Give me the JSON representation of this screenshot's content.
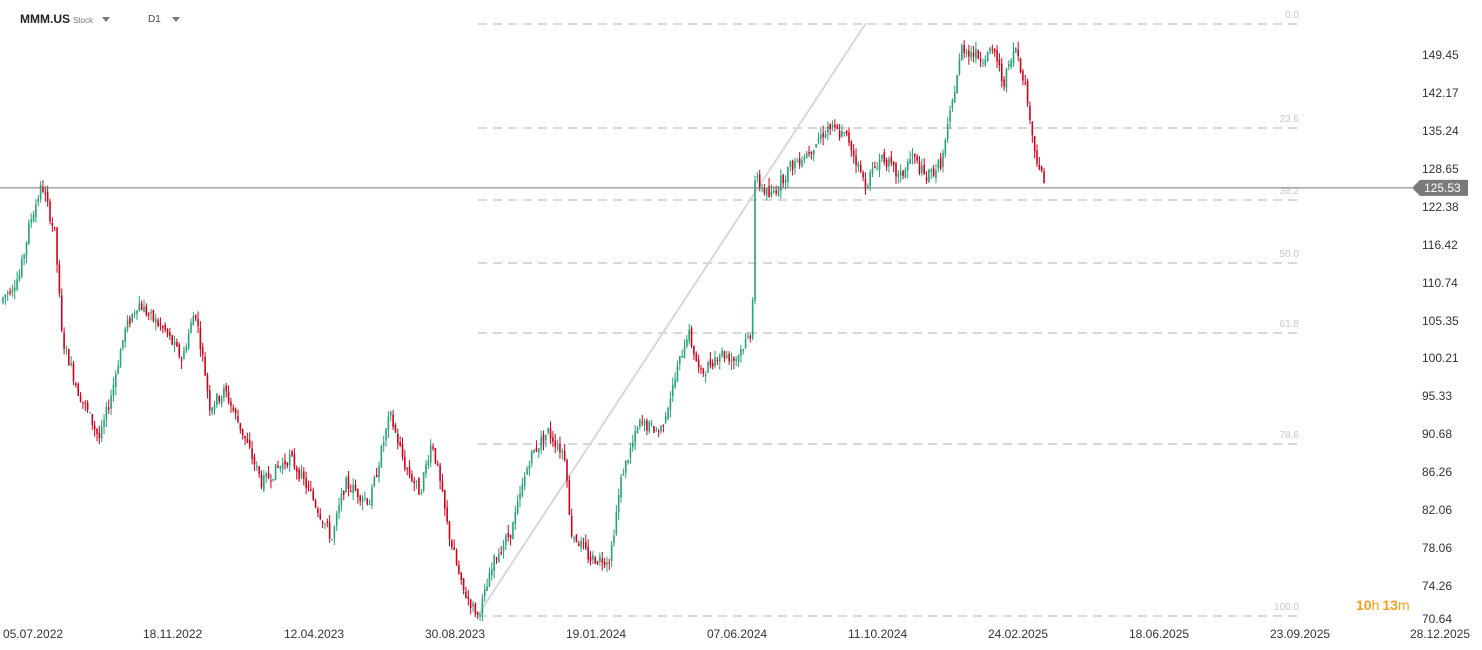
{
  "toolbar": {
    "symbol": "MMM.US",
    "instrument_type": "Stock",
    "timeframe": "D1",
    "symbol_dropdown_icon": "caret-down-icon",
    "timeframe_dropdown_icon": "caret-down-icon"
  },
  "countdown": {
    "hours": "10",
    "hours_unit": "h",
    "minutes": "13",
    "minutes_unit": "m"
  },
  "colors": {
    "up": "#26a17b",
    "down": "#d0021b",
    "fib": "#cccccc",
    "trend": "#d5d8db",
    "price_line": "#777777",
    "price_tag": "#7a7a7a",
    "countdown": "#f7a01d"
  },
  "chart_data": {
    "type": "candlestick",
    "ylim": [
      70.64,
      155.5
    ],
    "y_ticks": [
      "149.45",
      "142.17",
      "135.24",
      "128.65",
      "122.38",
      "116.42",
      "110.74",
      "105.35",
      "100.21",
      "95.33",
      "90.68",
      "86.26",
      "82.06",
      "78.06",
      "74.26",
      "70.64"
    ],
    "x_ticks": [
      "05.07.2022",
      "18.11.2022",
      "12.04.2023",
      "30.08.2023",
      "19.01.2024",
      "07.06.2024",
      "11.10.2024",
      "24.02.2025",
      "18.06.2025",
      "23.09.2025",
      "28.12.2025"
    ],
    "current_price": "125.53",
    "fibonacci": {
      "levels": [
        {
          "label": "0.0",
          "value": 155.2
        },
        {
          "label": "23.6",
          "value": 135.9
        },
        {
          "label": "38.2",
          "value": 123.3
        },
        {
          "label": "50.0",
          "value": 113.3
        },
        {
          "label": "61.8",
          "value": 104.0
        },
        {
          "label": "78.6",
          "value": 89.5
        },
        {
          "label": "100.0",
          "value": 71.0
        }
      ]
    },
    "trendline": {
      "from": {
        "date": "30.08.2023",
        "value": 71.0
      },
      "to": {
        "date": "11.10.2024",
        "value": 155.2
      }
    },
    "anchors": [
      {
        "x": 0,
        "y": 108
      },
      {
        "x": 20,
        "y": 112
      },
      {
        "x": 30,
        "y": 120
      },
      {
        "x": 42,
        "y": 126
      },
      {
        "x": 55,
        "y": 118
      },
      {
        "x": 62,
        "y": 103
      },
      {
        "x": 78,
        "y": 96
      },
      {
        "x": 100,
        "y": 90
      },
      {
        "x": 112,
        "y": 96
      },
      {
        "x": 125,
        "y": 104
      },
      {
        "x": 138,
        "y": 108
      },
      {
        "x": 150,
        "y": 106
      },
      {
        "x": 165,
        "y": 104
      },
      {
        "x": 182,
        "y": 100
      },
      {
        "x": 195,
        "y": 107
      },
      {
        "x": 210,
        "y": 94
      },
      {
        "x": 225,
        "y": 96
      },
      {
        "x": 242,
        "y": 91
      },
      {
        "x": 262,
        "y": 85
      },
      {
        "x": 290,
        "y": 88
      },
      {
        "x": 310,
        "y": 84
      },
      {
        "x": 332,
        "y": 79
      },
      {
        "x": 345,
        "y": 85
      },
      {
        "x": 370,
        "y": 83
      },
      {
        "x": 390,
        "y": 93
      },
      {
        "x": 405,
        "y": 87
      },
      {
        "x": 420,
        "y": 84
      },
      {
        "x": 432,
        "y": 90
      },
      {
        "x": 448,
        "y": 80
      },
      {
        "x": 462,
        "y": 74
      },
      {
        "x": 478,
        "y": 71
      },
      {
        "x": 495,
        "y": 77
      },
      {
        "x": 512,
        "y": 80
      },
      {
        "x": 530,
        "y": 88
      },
      {
        "x": 548,
        "y": 91
      },
      {
        "x": 566,
        "y": 88
      },
      {
        "x": 570,
        "y": 80
      },
      {
        "x": 590,
        "y": 77
      },
      {
        "x": 610,
        "y": 77
      },
      {
        "x": 622,
        "y": 86
      },
      {
        "x": 640,
        "y": 92
      },
      {
        "x": 660,
        "y": 91
      },
      {
        "x": 672,
        "y": 96
      },
      {
        "x": 688,
        "y": 104
      },
      {
        "x": 700,
        "y": 98
      },
      {
        "x": 720,
        "y": 101
      },
      {
        "x": 735,
        "y": 100
      },
      {
        "x": 752,
        "y": 104
      },
      {
        "x": 755,
        "y": 127
      },
      {
        "x": 770,
        "y": 124
      },
      {
        "x": 790,
        "y": 129
      },
      {
        "x": 810,
        "y": 132
      },
      {
        "x": 828,
        "y": 136
      },
      {
        "x": 848,
        "y": 134
      },
      {
        "x": 865,
        "y": 126
      },
      {
        "x": 882,
        "y": 131
      },
      {
        "x": 900,
        "y": 127
      },
      {
        "x": 912,
        "y": 131
      },
      {
        "x": 926,
        "y": 127
      },
      {
        "x": 942,
        "y": 130
      },
      {
        "x": 952,
        "y": 140
      },
      {
        "x": 962,
        "y": 151
      },
      {
        "x": 980,
        "y": 149
      },
      {
        "x": 995,
        "y": 150
      },
      {
        "x": 1003,
        "y": 144
      },
      {
        "x": 1016,
        "y": 151
      },
      {
        "x": 1026,
        "y": 143
      },
      {
        "x": 1033,
        "y": 133
      },
      {
        "x": 1038,
        "y": 130
      },
      {
        "x": 1045,
        "y": 125.5
      }
    ]
  }
}
